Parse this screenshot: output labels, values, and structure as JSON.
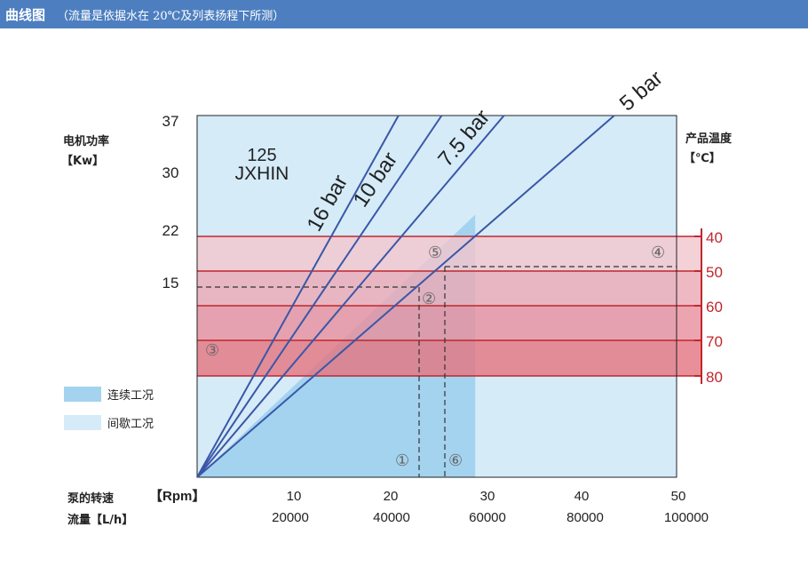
{
  "header": {
    "title": "曲线图",
    "subtitle": "（流量是依据水在 20℃及列表扬程下所测）"
  },
  "chart_data": {
    "type": "line",
    "model_number": "125",
    "model_name": "JXHIN",
    "y_left_label_line1": "电机功率",
    "y_left_label_line2": "【Kw】",
    "y_left_ticks": [
      37,
      30,
      22,
      15
    ],
    "y_right_label_line1": "产品温度",
    "y_right_label_line2": "【℃】",
    "y_right_ticks": [
      40,
      50,
      60,
      70,
      80
    ],
    "x_speed_label": "泵的转速",
    "x_speed_unit": "【Rpm】",
    "x_speed_ticks": [
      10,
      20,
      30,
      40,
      50
    ],
    "x_flow_label": "流量【L/h】",
    "x_flow_ticks": [
      "20000",
      "40000",
      "60000",
      "80000",
      "100000"
    ],
    "xlim": [
      0,
      50
    ],
    "series": [
      {
        "name": "16 bar",
        "x": [
          0,
          21
        ],
        "y": [
          0,
          37
        ]
      },
      {
        "name": "10 bar",
        "x": [
          0,
          25.5
        ],
        "y": [
          0,
          37
        ]
      },
      {
        "name": "7.5 bar",
        "x": [
          0,
          32
        ],
        "y": [
          0,
          37
        ]
      },
      {
        "name": "5 bar",
        "x": [
          0,
          43.5
        ],
        "y": [
          0,
          37
        ]
      }
    ],
    "regions": {
      "continuous_label": "连续工况",
      "continuous_max_speed": 29,
      "intermittent_label": "间歇工况",
      "continuous_color": "#a3d3ef",
      "intermittent_color": "#d5ebf8",
      "temperature_colors": [
        "#f2c6ce",
        "#ecaab6",
        "#e8909f",
        "#e47683"
      ],
      "temperature_border_color": "#c0272d"
    },
    "markers": [
      "①",
      "②",
      "③",
      "④",
      "⑤",
      "⑥"
    ],
    "line_color": "#3a57a7"
  }
}
